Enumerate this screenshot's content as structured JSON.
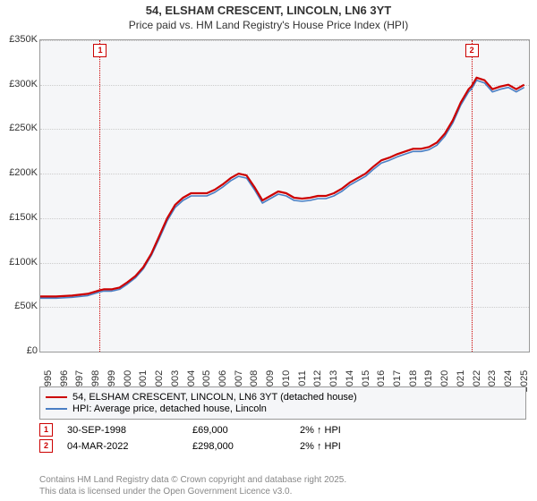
{
  "title": {
    "line1": "54, ELSHAM CRESCENT, LINCOLN, LN6 3YT",
    "line2": "Price paid vs. HM Land Registry's House Price Index (HPI)"
  },
  "chart": {
    "type": "line",
    "background_color": "#f5f6f8",
    "grid_color": "#cccccc",
    "border_color": "#999999",
    "ylim": [
      0,
      350000
    ],
    "ytick_step": 50000,
    "yticks": [
      "£0",
      "£50K",
      "£100K",
      "£150K",
      "£200K",
      "£250K",
      "£300K",
      "£350K"
    ],
    "xlim": [
      1995,
      2025.8
    ],
    "xticks": [
      1995,
      1996,
      1997,
      1998,
      1999,
      2000,
      2001,
      2002,
      2003,
      2004,
      2005,
      2006,
      2007,
      2008,
      2009,
      2010,
      2011,
      2012,
      2013,
      2014,
      2015,
      2016,
      2017,
      2018,
      2019,
      2020,
      2021,
      2022,
      2023,
      2024,
      2025
    ],
    "series": [
      {
        "name": "54, ELSHAM CRESCENT, LINCOLN, LN6 3YT (detached house)",
        "color": "#cc0000",
        "line_width": 2.2,
        "data": [
          [
            1995,
            62000
          ],
          [
            1996,
            62000
          ],
          [
            1997,
            63000
          ],
          [
            1998,
            65000
          ],
          [
            1998.75,
            69000
          ],
          [
            1999,
            70000
          ],
          [
            1999.5,
            70000
          ],
          [
            2000,
            72000
          ],
          [
            2000.5,
            78000
          ],
          [
            2001,
            85000
          ],
          [
            2001.5,
            95000
          ],
          [
            2002,
            110000
          ],
          [
            2002.5,
            130000
          ],
          [
            2003,
            150000
          ],
          [
            2003.5,
            165000
          ],
          [
            2004,
            173000
          ],
          [
            2004.5,
            178000
          ],
          [
            2005,
            178000
          ],
          [
            2005.5,
            178000
          ],
          [
            2006,
            182000
          ],
          [
            2006.5,
            188000
          ],
          [
            2007,
            195000
          ],
          [
            2007.5,
            200000
          ],
          [
            2008,
            198000
          ],
          [
            2008.5,
            185000
          ],
          [
            2009,
            170000
          ],
          [
            2009.5,
            175000
          ],
          [
            2010,
            180000
          ],
          [
            2010.5,
            178000
          ],
          [
            2011,
            173000
          ],
          [
            2011.5,
            172000
          ],
          [
            2012,
            173000
          ],
          [
            2012.5,
            175000
          ],
          [
            2013,
            175000
          ],
          [
            2013.5,
            178000
          ],
          [
            2014,
            183000
          ],
          [
            2014.5,
            190000
          ],
          [
            2015,
            195000
          ],
          [
            2015.5,
            200000
          ],
          [
            2016,
            208000
          ],
          [
            2016.5,
            215000
          ],
          [
            2017,
            218000
          ],
          [
            2017.5,
            222000
          ],
          [
            2018,
            225000
          ],
          [
            2018.5,
            228000
          ],
          [
            2019,
            228000
          ],
          [
            2019.5,
            230000
          ],
          [
            2020,
            235000
          ],
          [
            2020.5,
            245000
          ],
          [
            2021,
            260000
          ],
          [
            2021.5,
            280000
          ],
          [
            2022,
            295000
          ],
          [
            2022.17,
            298000
          ],
          [
            2022.5,
            308000
          ],
          [
            2023,
            305000
          ],
          [
            2023.5,
            295000
          ],
          [
            2024,
            298000
          ],
          [
            2024.5,
            300000
          ],
          [
            2025,
            295000
          ],
          [
            2025.5,
            300000
          ]
        ]
      },
      {
        "name": "HPI: Average price, detached house, Lincoln",
        "color": "#4a7fc4",
        "line_width": 1.6,
        "data": [
          [
            1995,
            60000
          ],
          [
            1996,
            60000
          ],
          [
            1997,
            61000
          ],
          [
            1998,
            63000
          ],
          [
            1998.75,
            67000
          ],
          [
            1999,
            68000
          ],
          [
            1999.5,
            68000
          ],
          [
            2000,
            70000
          ],
          [
            2000.5,
            76000
          ],
          [
            2001,
            83000
          ],
          [
            2001.5,
            93000
          ],
          [
            2002,
            108000
          ],
          [
            2002.5,
            127000
          ],
          [
            2003,
            147000
          ],
          [
            2003.5,
            162000
          ],
          [
            2004,
            170000
          ],
          [
            2004.5,
            175000
          ],
          [
            2005,
            175000
          ],
          [
            2005.5,
            175000
          ],
          [
            2006,
            179000
          ],
          [
            2006.5,
            185000
          ],
          [
            2007,
            192000
          ],
          [
            2007.5,
            197000
          ],
          [
            2008,
            195000
          ],
          [
            2008.5,
            182000
          ],
          [
            2009,
            167000
          ],
          [
            2009.5,
            172000
          ],
          [
            2010,
            177000
          ],
          [
            2010.5,
            175000
          ],
          [
            2011,
            170000
          ],
          [
            2011.5,
            169000
          ],
          [
            2012,
            170000
          ],
          [
            2012.5,
            172000
          ],
          [
            2013,
            172000
          ],
          [
            2013.5,
            175000
          ],
          [
            2014,
            180000
          ],
          [
            2014.5,
            187000
          ],
          [
            2015,
            192000
          ],
          [
            2015.5,
            197000
          ],
          [
            2016,
            205000
          ],
          [
            2016.5,
            212000
          ],
          [
            2017,
            215000
          ],
          [
            2017.5,
            219000
          ],
          [
            2018,
            222000
          ],
          [
            2018.5,
            225000
          ],
          [
            2019,
            225000
          ],
          [
            2019.5,
            227000
          ],
          [
            2020,
            232000
          ],
          [
            2020.5,
            242000
          ],
          [
            2021,
            257000
          ],
          [
            2021.5,
            277000
          ],
          [
            2022,
            292000
          ],
          [
            2022.17,
            295000
          ],
          [
            2022.5,
            305000
          ],
          [
            2023,
            302000
          ],
          [
            2023.5,
            292000
          ],
          [
            2024,
            295000
          ],
          [
            2024.5,
            297000
          ],
          [
            2025,
            292000
          ],
          [
            2025.5,
            297000
          ]
        ]
      }
    ],
    "markers": [
      {
        "id": "1",
        "x": 1998.75,
        "color": "#cc0000"
      },
      {
        "id": "2",
        "x": 2022.17,
        "color": "#cc0000"
      }
    ]
  },
  "legend": {
    "items": [
      {
        "color": "#cc0000",
        "label": "54, ELSHAM CRESCENT, LINCOLN, LN6 3YT (detached house)"
      },
      {
        "color": "#4a7fc4",
        "label": "HPI: Average price, detached house, Lincoln"
      }
    ]
  },
  "data_points": [
    {
      "id": "1",
      "date": "30-SEP-1998",
      "price": "£69,000",
      "change": "2% ↑ HPI"
    },
    {
      "id": "2",
      "date": "04-MAR-2022",
      "price": "£298,000",
      "change": "2% ↑ HPI"
    }
  ],
  "footer": {
    "line1": "Contains HM Land Registry data © Crown copyright and database right 2025.",
    "line2": "This data is licensed under the Open Government Licence v3.0."
  }
}
